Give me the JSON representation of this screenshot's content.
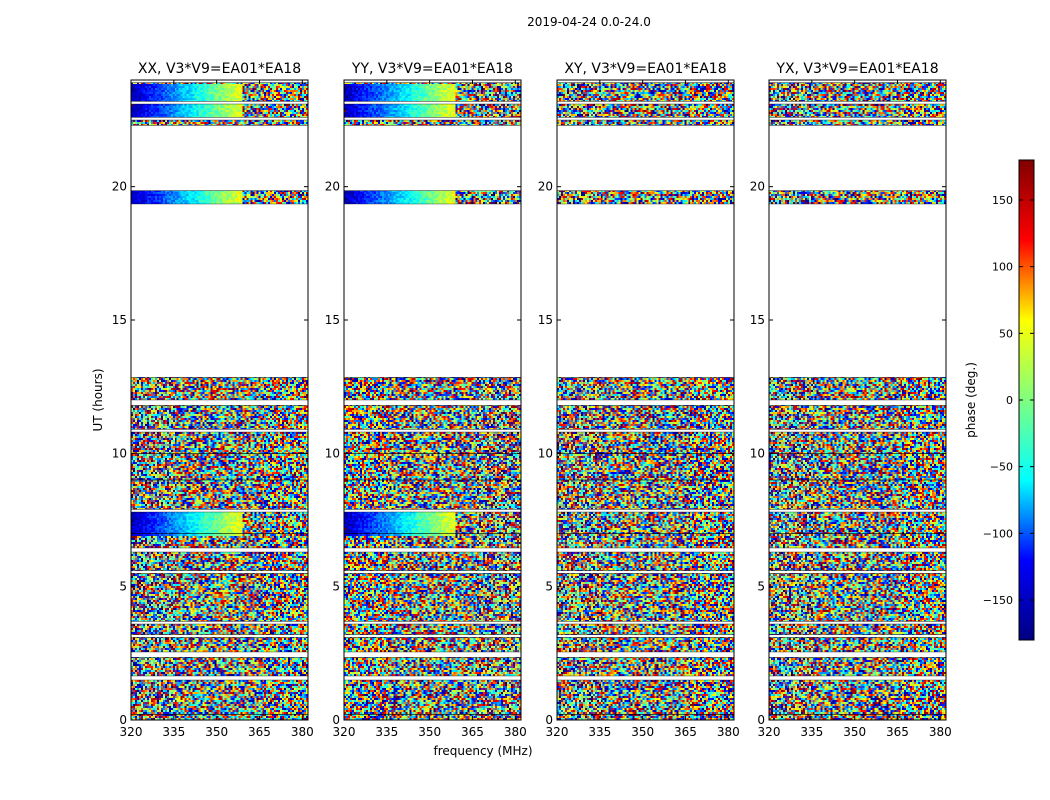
{
  "chart_data": {
    "type": "heatmap",
    "suptitle": "2019-04-24 0.0-24.0",
    "xlabel": "frequency (MHz)",
    "ylabel": "UT (hours)",
    "xlim": [
      320,
      382
    ],
    "ylim": [
      0,
      24
    ],
    "xticks": [
      320,
      335,
      350,
      365,
      380
    ],
    "yticks": [
      0,
      5,
      10,
      15,
      20
    ],
    "colorbar": {
      "label": "phase (deg.)",
      "range": [
        -180,
        180
      ],
      "ticks": [
        150,
        100,
        50,
        0,
        -50,
        -100,
        -150
      ],
      "tick_labels": [
        "150",
        "100",
        "50",
        "0",
        "−50",
        "−100",
        "−150"
      ],
      "colormap": "jet",
      "stops": [
        "#000080",
        "#0000ff",
        "#00ffff",
        "#80ff80",
        "#ffff00",
        "#ff0000",
        "#800000"
      ]
    },
    "data_segments_hours": [
      [
        0.0,
        0.2
      ],
      [
        0.2,
        1.5
      ],
      [
        1.65,
        2.35
      ],
      [
        2.55,
        3.1
      ],
      [
        3.2,
        3.6
      ],
      [
        3.7,
        5.5
      ],
      [
        5.6,
        6.3
      ],
      [
        6.45,
        7.0
      ],
      [
        7.0,
        7.8
      ],
      [
        7.9,
        9.0
      ],
      [
        9.0,
        10.0
      ],
      [
        10.0,
        10.8
      ],
      [
        10.9,
        11.8
      ],
      [
        12.0,
        12.85
      ],
      [
        19.35,
        19.85
      ],
      [
        22.3,
        22.5
      ],
      [
        22.6,
        23.1
      ],
      [
        23.2,
        23.9
      ]
    ],
    "panels": [
      {
        "title": "XX, V3*V9=EA01*EA18",
        "style": "coherent"
      },
      {
        "title": "YY, V3*V9=EA01*EA18",
        "style": "coherent"
      },
      {
        "title": "XY, V3*V9=EA01*EA18",
        "style": "noise"
      },
      {
        "title": "YX, V3*V9=EA01*EA18",
        "style": "noise"
      }
    ]
  }
}
